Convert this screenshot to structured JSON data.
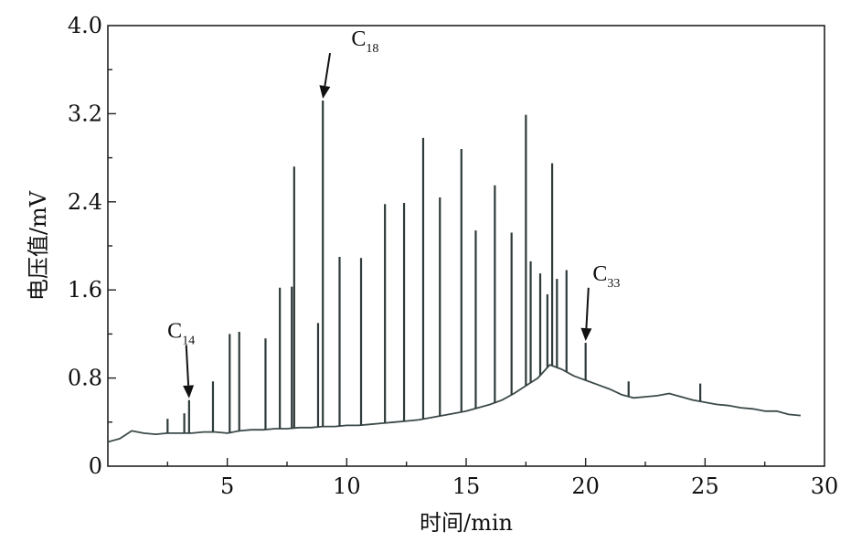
{
  "chart_data": {
    "type": "line",
    "xlabel": "时间/min",
    "ylabel": "电压值/mV",
    "xlim": [
      0,
      30
    ],
    "ylim": [
      0,
      4.0
    ],
    "xticks": [
      5,
      10,
      15,
      20,
      25,
      30
    ],
    "xtick_labels": [
      "5",
      "10",
      "15",
      "20",
      "25",
      "30"
    ],
    "yticks": [
      0,
      0.8,
      1.6,
      2.4,
      3.2,
      4.0
    ],
    "ytick_labels": [
      "0",
      "0.8",
      "1.6",
      "2.4",
      "3.2",
      "4.0"
    ],
    "grid": false,
    "baseline": {
      "x": [
        0,
        0.5,
        1.0,
        1.5,
        2.0,
        2.5,
        3.0,
        3.5,
        4.0,
        4.5,
        5.0,
        5.5,
        6.0,
        6.5,
        7.0,
        7.5,
        8.0,
        8.5,
        9.0,
        9.5,
        10.0,
        10.5,
        11.0,
        11.5,
        12.0,
        12.5,
        13.0,
        13.5,
        14.0,
        14.5,
        15.0,
        15.5,
        16.0,
        16.5,
        17.0,
        17.5,
        18.0,
        18.5,
        19.0,
        19.5,
        20.0,
        20.5,
        21.0,
        21.5,
        22.0,
        22.5,
        23.0,
        23.5,
        24.0,
        24.5,
        25.0,
        25.5,
        26.0,
        26.5,
        27.0,
        27.5,
        28.0,
        28.5,
        29.0
      ],
      "y": [
        0.22,
        0.25,
        0.32,
        0.3,
        0.29,
        0.3,
        0.3,
        0.3,
        0.31,
        0.31,
        0.3,
        0.32,
        0.33,
        0.33,
        0.34,
        0.34,
        0.35,
        0.35,
        0.36,
        0.36,
        0.37,
        0.37,
        0.38,
        0.39,
        0.4,
        0.41,
        0.42,
        0.44,
        0.46,
        0.48,
        0.5,
        0.53,
        0.56,
        0.6,
        0.66,
        0.73,
        0.8,
        0.92,
        0.88,
        0.82,
        0.78,
        0.74,
        0.7,
        0.65,
        0.62,
        0.63,
        0.64,
        0.66,
        0.63,
        0.6,
        0.58,
        0.56,
        0.55,
        0.53,
        0.52,
        0.5,
        0.5,
        0.47,
        0.46
      ]
    },
    "peaks": {
      "x": [
        2.5,
        3.2,
        3.4,
        4.4,
        5.1,
        5.5,
        6.6,
        7.2,
        7.7,
        7.8,
        8.8,
        9.0,
        9.7,
        10.6,
        11.6,
        12.4,
        13.2,
        13.9,
        14.8,
        15.4,
        16.2,
        16.9,
        17.5,
        17.7,
        18.1,
        18.4,
        18.6,
        18.8,
        19.2,
        20.0,
        21.8,
        24.8
      ],
      "y": [
        0.43,
        0.48,
        0.6,
        0.77,
        1.2,
        1.22,
        1.16,
        1.62,
        1.63,
        2.72,
        1.3,
        3.32,
        1.9,
        1.89,
        2.38,
        2.39,
        2.98,
        2.44,
        2.88,
        2.14,
        2.55,
        2.12,
        3.19,
        1.86,
        1.75,
        1.56,
        2.75,
        1.7,
        1.78,
        1.12,
        0.77,
        0.75
      ]
    },
    "annotations": [
      {
        "base": "C",
        "sub": "14",
        "x": 3.4,
        "y": 0.6
      },
      {
        "base": "C",
        "sub": "18",
        "x": 9.0,
        "y": 3.32
      },
      {
        "base": "C",
        "sub": "33",
        "x": 20.0,
        "y": 1.12
      }
    ]
  }
}
